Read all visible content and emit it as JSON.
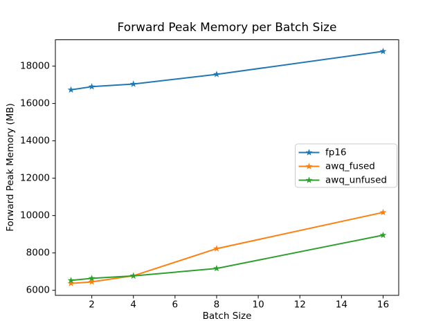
{
  "figure": {
    "background": "#ffffff",
    "text_color": "#000000",
    "spine_color": "#000000",
    "legend_border_color": "#cccccc",
    "legend_background": "#ffffff"
  },
  "chart_data": {
    "type": "line",
    "title": "Forward Peak Memory per Batch Size",
    "xlabel": "Batch Size",
    "ylabel": "Forward Peak Memory (MB)",
    "x": [
      1,
      2,
      4,
      8,
      16
    ],
    "series": [
      {
        "name": "fp16",
        "color": "#1f77b4",
        "marker": "star",
        "values": [
          16730,
          16900,
          17040,
          17560,
          18790
        ]
      },
      {
        "name": "awq_fused",
        "color": "#ff7f0e",
        "marker": "star",
        "values": [
          6370,
          6450,
          6780,
          8230,
          10170
        ]
      },
      {
        "name": "awq_unfused",
        "color": "#2ca02c",
        "marker": "star",
        "values": [
          6530,
          6640,
          6770,
          7170,
          8950
        ]
      }
    ],
    "xlim": [
      0.25,
      16.75
    ],
    "ylim": [
      5730,
      19410
    ],
    "xticks": [
      2,
      4,
      6,
      8,
      10,
      12,
      14,
      16
    ],
    "yticks": [
      6000,
      8000,
      10000,
      12000,
      14000,
      16000,
      18000
    ],
    "grid": false,
    "legend": {
      "position": "center right",
      "entries": [
        "fp16",
        "awq_fused",
        "awq_unfused"
      ]
    }
  }
}
